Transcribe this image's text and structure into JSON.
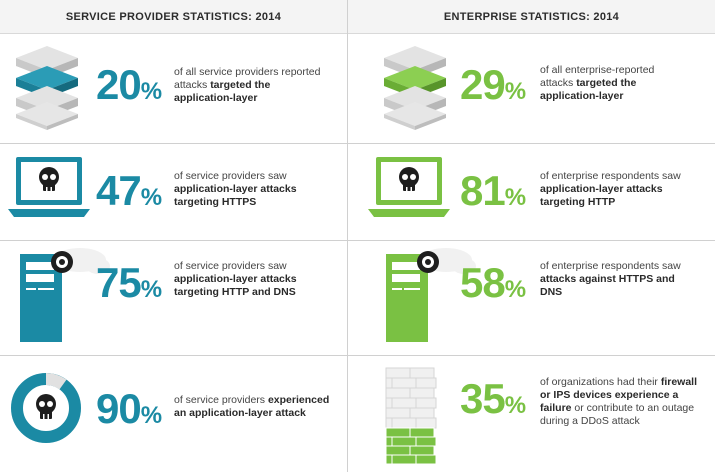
{
  "headers": {
    "left": "SERVICE PROVIDER STATISTICS: 2014",
    "right": "ENTERPRISE STATISTICS: 2014"
  },
  "colors": {
    "sp_accent": "#1b8aa4",
    "ent_accent": "#7ac143"
  },
  "service_provider": [
    {
      "icon": "layers-stack-icon",
      "number": "20",
      "sign": "%",
      "text": [
        {
          "t": "of all service providers reported attacks ",
          "b": false
        },
        {
          "t": "targeted the application-layer",
          "b": true
        }
      ]
    },
    {
      "icon": "laptop-skull-icon",
      "number": "47",
      "sign": "%",
      "text": [
        {
          "t": "of service providers saw ",
          "b": false
        },
        {
          "t": "application-layer attacks targeting HTTPS",
          "b": true
        }
      ]
    },
    {
      "icon": "server-cloud-icon",
      "number": "75",
      "sign": "%",
      "text": [
        {
          "t": "of service providers saw ",
          "b": false
        },
        {
          "t": "application-layer attacks targeting HTTP and DNS",
          "b": true
        }
      ]
    },
    {
      "icon": "donut-skull-icon",
      "number": "90",
      "sign": "%",
      "text": [
        {
          "t": "of service providers ",
          "b": false
        },
        {
          "t": "experienced an application-layer attack",
          "b": true
        }
      ]
    }
  ],
  "enterprise": [
    {
      "icon": "layers-stack-icon",
      "number": "29",
      "sign": "%",
      "text": [
        {
          "t": "of all enterprise-reported attacks ",
          "b": false
        },
        {
          "t": "targeted the application-layer",
          "b": true
        }
      ]
    },
    {
      "icon": "laptop-skull-icon",
      "number": "81",
      "sign": "%",
      "text": [
        {
          "t": "of enterprise respondents saw ",
          "b": false
        },
        {
          "t": "application-layer attacks targeting HTTP",
          "b": true
        }
      ]
    },
    {
      "icon": "server-cloud-icon",
      "number": "58",
      "sign": "%",
      "text": [
        {
          "t": "of enterprise respondents saw ",
          "b": false
        },
        {
          "t": "attacks against HTTPS and DNS",
          "b": true
        }
      ]
    },
    {
      "icon": "firewall-icon",
      "number": "35",
      "sign": "%",
      "text": [
        {
          "t": "of organizations had their ",
          "b": false
        },
        {
          "t": "firewall or IPS devices experience a failure",
          "b": true
        },
        {
          "t": " or contribute to an outage during a DDoS attack",
          "b": false
        }
      ]
    }
  ]
}
